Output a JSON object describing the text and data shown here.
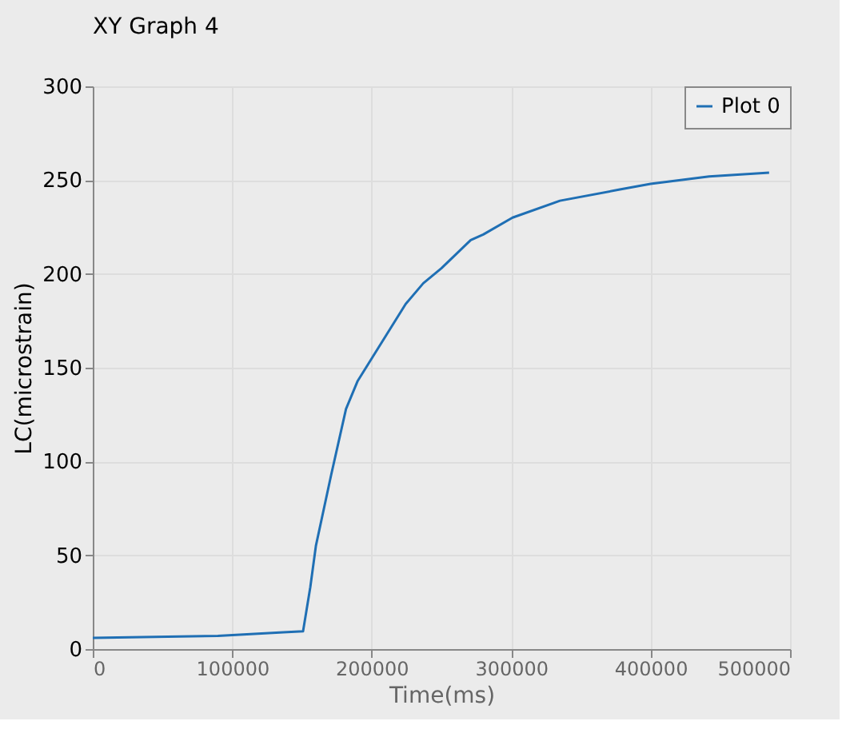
{
  "chart_data": {
    "type": "line",
    "title": "XY Graph 4",
    "xlabel": "Time(ms)",
    "ylabel": "LC(microstrain)",
    "x": [
      0,
      89700,
      136700,
      150800,
      156000,
      160000,
      171000,
      181600,
      190000,
      200900,
      224400,
      237000,
      250000,
      271000,
      280000,
      301000,
      335000,
      378000,
      400000,
      442000,
      485000
    ],
    "series": [
      {
        "name": "Plot 0",
        "color": "#1f6fb4",
        "values": [
          6,
          7,
          9,
          9.5,
          33,
          55,
          93,
          128,
          143,
          156,
          184,
          195,
          203,
          218,
          221,
          230,
          239,
          245,
          248,
          252,
          254
        ]
      }
    ],
    "xlim": [
      0,
      500000
    ],
    "xticks": [
      0,
      100000,
      200000,
      300000,
      400000,
      500000
    ],
    "ylim": [
      0,
      300
    ],
    "yticks": [
      0,
      50,
      100,
      150,
      200,
      250,
      300
    ],
    "grid": true,
    "legend": "top right"
  }
}
